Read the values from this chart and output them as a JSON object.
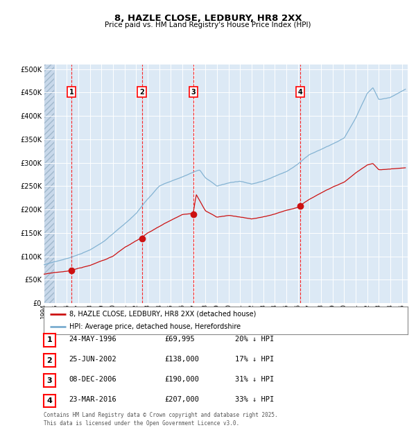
{
  "title": "8, HAZLE CLOSE, LEDBURY, HR8 2XX",
  "subtitle": "Price paid vs. HM Land Registry's House Price Index (HPI)",
  "bg_color": "#dce9f5",
  "hatch_color": "#c8d8ea",
  "grid_color": "#ffffff",
  "hpi_color": "#7aadcf",
  "price_color": "#cc1111",
  "purchases": [
    {
      "num": 1,
      "date": "24-MAY-1996",
      "price": 69995,
      "pct": "20%",
      "x_year": 1996.39
    },
    {
      "num": 2,
      "date": "25-JUN-2002",
      "price": 138000,
      "pct": "17%",
      "x_year": 2002.49
    },
    {
      "num": 3,
      "date": "08-DEC-2006",
      "price": 190000,
      "pct": "31%",
      "x_year": 2006.94
    },
    {
      "num": 4,
      "date": "23-MAR-2016",
      "price": 207000,
      "pct": "33%",
      "x_year": 2016.22
    }
  ],
  "legend_entries": [
    "8, HAZLE CLOSE, LEDBURY, HR8 2XX (detached house)",
    "HPI: Average price, detached house, Herefordshire"
  ],
  "footer": "Contains HM Land Registry data © Crown copyright and database right 2025.\nThis data is licensed under the Open Government Licence v3.0.",
  "ylim": [
    0,
    510000
  ],
  "yticks": [
    0,
    50000,
    100000,
    150000,
    200000,
    250000,
    300000,
    350000,
    400000,
    450000,
    500000
  ],
  "ytick_labels": [
    "£0",
    "£50K",
    "£100K",
    "£150K",
    "£200K",
    "£250K",
    "£300K",
    "£350K",
    "£400K",
    "£450K",
    "£500K"
  ],
  "xlim_start": 1994.0,
  "xlim_end": 2025.5,
  "hpi_data": {
    "control_years": [
      1994,
      1995,
      1996,
      1997,
      1998,
      1999,
      2000,
      2001,
      2002,
      2003,
      2004,
      2005,
      2006,
      2007,
      2007.5,
      2008,
      2009,
      2010,
      2011,
      2012,
      2013,
      2014,
      2015,
      2016,
      2017,
      2018,
      2019,
      2020,
      2021,
      2022,
      2022.5,
      2023,
      2024,
      2025.3
    ],
    "control_prices": [
      82000,
      88000,
      95000,
      103000,
      113000,
      128000,
      148000,
      168000,
      190000,
      220000,
      248000,
      258000,
      268000,
      278000,
      282000,
      265000,
      248000,
      255000,
      258000,
      252000,
      258000,
      268000,
      278000,
      295000,
      315000,
      328000,
      340000,
      352000,
      395000,
      448000,
      460000,
      435000,
      440000,
      458000
    ]
  },
  "prop_data": {
    "control_years": [
      1994,
      1995,
      1996,
      1996.39,
      1997,
      1998,
      1999,
      2000,
      2001,
      2002,
      2002.49,
      2003,
      2004,
      2005,
      2006,
      2006.94,
      2007.2,
      2008,
      2009,
      2010,
      2011,
      2012,
      2013,
      2014,
      2015,
      2016,
      2016.22,
      2017,
      2018,
      2019,
      2020,
      2021,
      2022,
      2022.5,
      2023,
      2024,
      2025.3
    ],
    "control_prices": [
      62000,
      65000,
      68000,
      69995,
      74000,
      80000,
      90000,
      100000,
      118000,
      132000,
      138000,
      148000,
      162000,
      175000,
      188000,
      190000,
      230000,
      195000,
      182000,
      186000,
      182000,
      178000,
      182000,
      188000,
      196000,
      203000,
      207000,
      220000,
      235000,
      248000,
      258000,
      278000,
      295000,
      298000,
      285000,
      287000,
      290000
    ]
  }
}
